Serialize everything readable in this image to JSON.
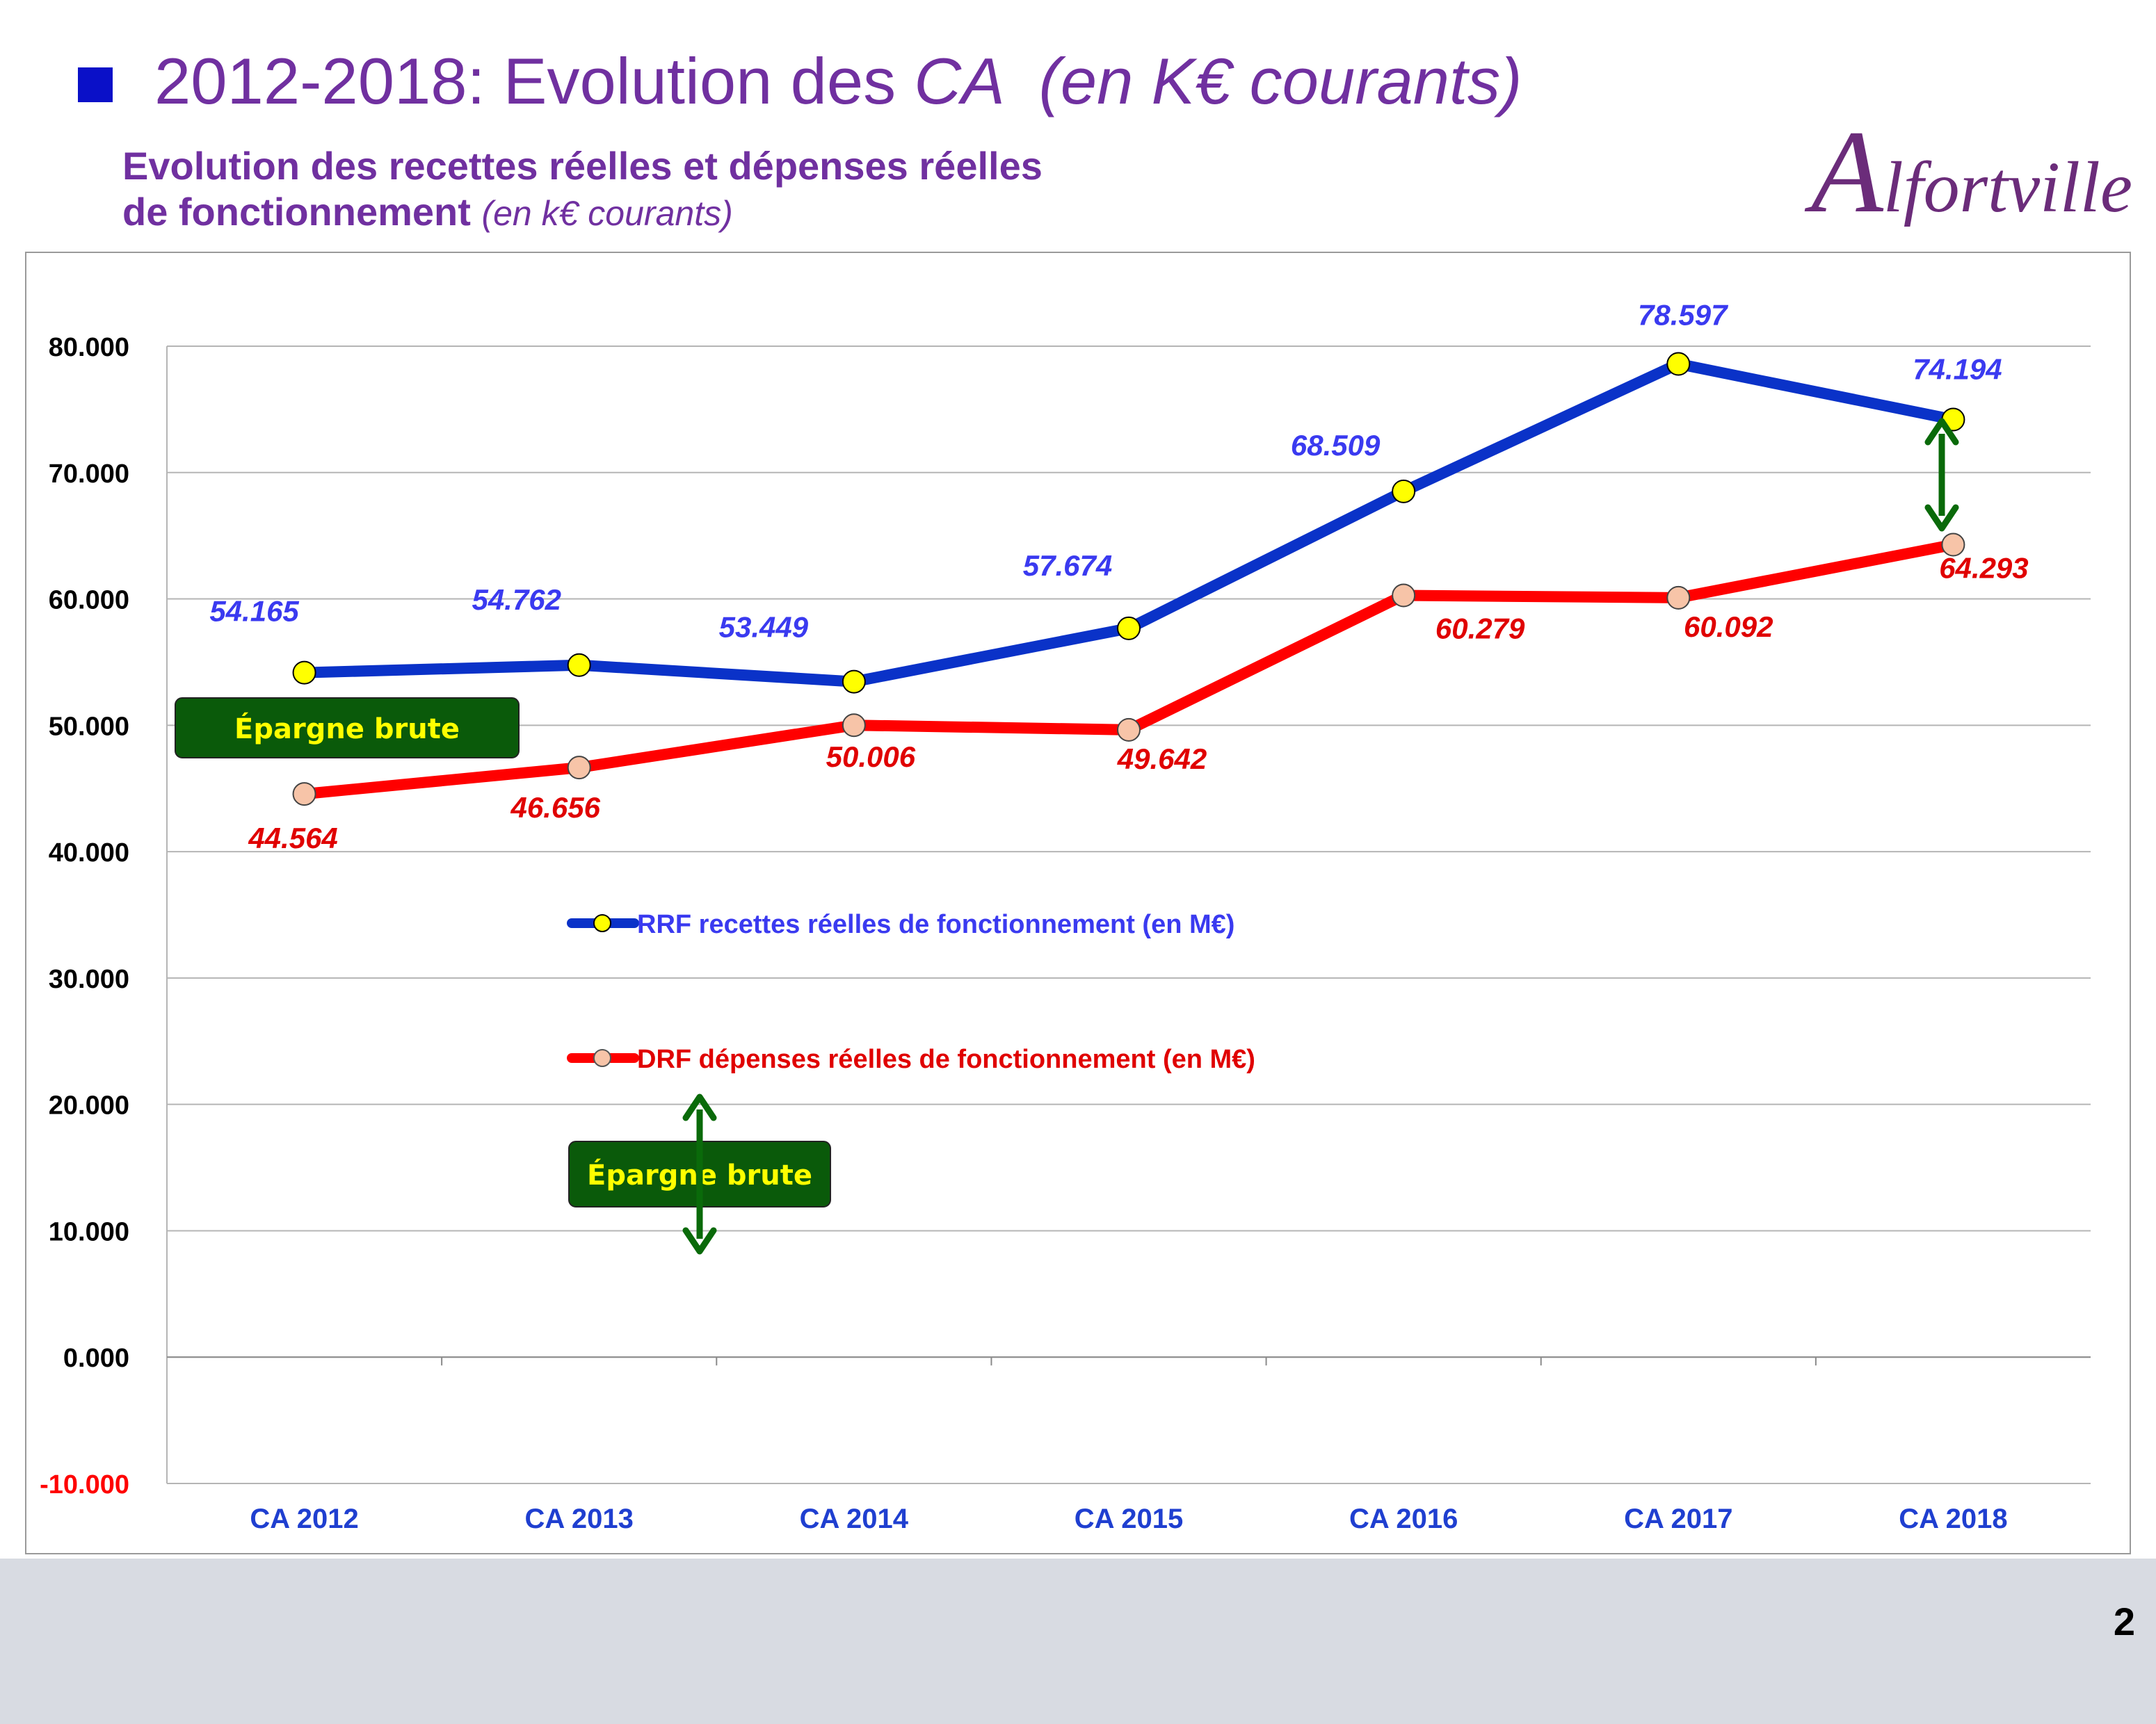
{
  "header": {
    "title_prefix": "2012-2018: Evolution des ",
    "title_italic": "CA  (en K€ courants)",
    "subtitle_line1": "Evolution des recettes réelles et dépenses réelles",
    "subtitle_line2_bold": "de fonctionnement",
    "subtitle_line2_italic": "(en k€ courants)",
    "logo_initial": "A",
    "logo_rest": "lfortville"
  },
  "footer": {
    "page_number": "2"
  },
  "colors": {
    "title": "#7030a0",
    "bullet": "#0a10c8",
    "rrf": "#0a32c8",
    "drf": "#ff0000",
    "rrf_label": "#3a3af0",
    "drf_label": "#e00000",
    "marker_rrf": "#ffff00",
    "marker_drf": "#f7c4a8",
    "box_fill": "#0a5a0a",
    "box_text": "#ffff00",
    "arrow": "#0a6a0a",
    "xtick": "#1f3fd0"
  },
  "chart_data": {
    "type": "line",
    "categories": [
      "CA 2012",
      "CA 2013",
      "CA 2014",
      "CA 2015",
      "CA 2016",
      "CA 2017",
      "CA 2018"
    ],
    "ylim": [
      -10,
      80
    ],
    "yticks": [
      80,
      70,
      60,
      50,
      40,
      30,
      20,
      10,
      0,
      -10
    ],
    "ytick_labels": [
      "80.000",
      "70.000",
      "60.000",
      "50.000",
      "40.000",
      "30.000",
      "20.000",
      "10.000",
      "0.000",
      "-10.000"
    ],
    "grid": true,
    "series": [
      {
        "name": "RRF recettes réelles de fonctionnement (en M€)",
        "values": [
          54.165,
          54.762,
          53.449,
          57.674,
          68.509,
          78.597,
          74.194
        ],
        "labels": [
          "54.165",
          "54.762",
          "53.449",
          "57.674",
          "68.509",
          "78.597",
          "74.194"
        ]
      },
      {
        "name": "DRF dépenses réelles de fonctionnement (en M€)",
        "values": [
          44.564,
          46.656,
          50.006,
          49.642,
          60.279,
          60.092,
          64.293
        ],
        "labels": [
          "44.564",
          "46.656",
          "50.006",
          "49.642",
          "60.279",
          "60.092",
          "64.293"
        ]
      }
    ],
    "annotations": [
      "Épargne brute",
      "Épargne brute"
    ]
  }
}
